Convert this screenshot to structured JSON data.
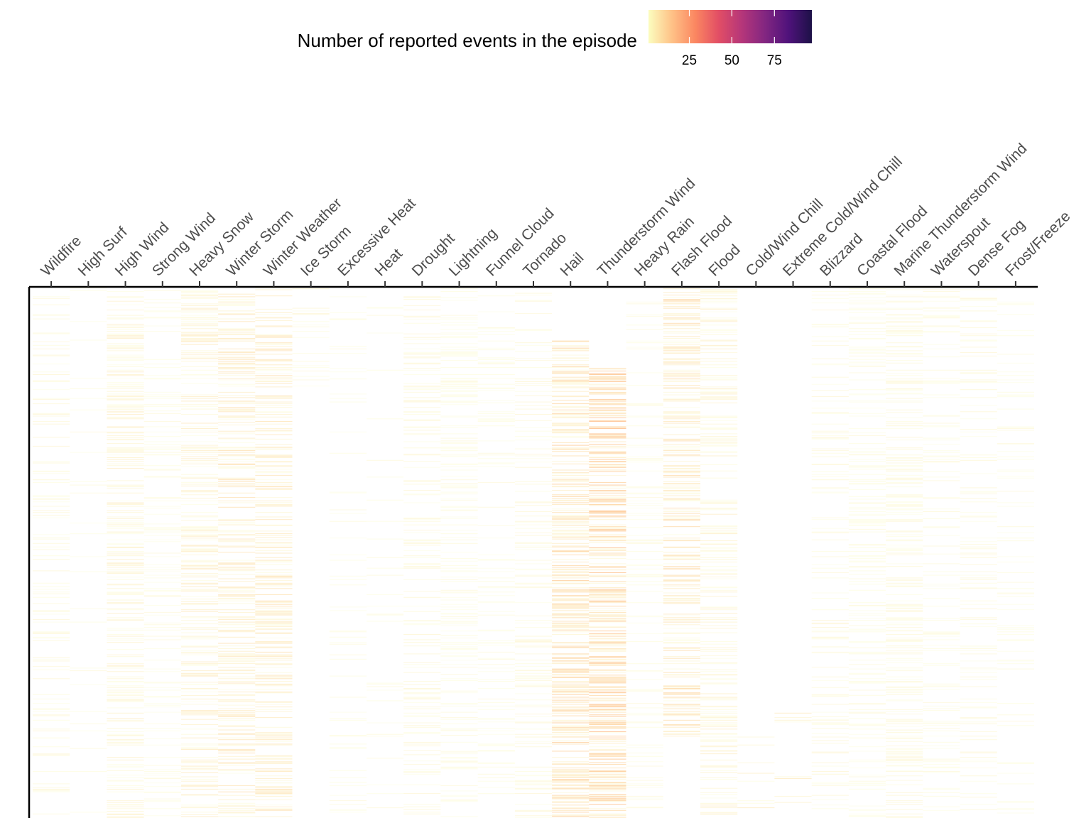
{
  "chart_data": {
    "type": "heatmap",
    "title": "",
    "xlabel": "",
    "ylabel": "",
    "x_axis_position": "top",
    "y_axis_labels_shown": false,
    "grid": false,
    "categories": [
      "Wildfire",
      "High Surf",
      "High Wind",
      "Strong Wind",
      "Heavy Snow",
      "Winter Storm",
      "Winter Weather",
      "Ice Storm",
      "Excessive Heat",
      "Heat",
      "Drought",
      "Lightning",
      "Funnel Cloud",
      "Tornado",
      "Hail",
      "Thunderstorm Wind",
      "Heavy Rain",
      "Flash Flood",
      "Flood",
      "Cold/Wind Chill",
      "Extreme Cold/Wind Chill",
      "Blizzard",
      "Coastal Flood",
      "Marine Thunderstorm Wind",
      "Waterspout",
      "Dense Fog",
      "Frost/Freeze"
    ],
    "row_count_estimate": 1200,
    "legend": {
      "title": "Number of reported events in the episode",
      "position": "top",
      "ticks": [
        25,
        50,
        75
      ],
      "range": [
        1,
        97
      ],
      "palette": "magma (reversed)",
      "colors": [
        "#fcfdbf",
        "#fec287",
        "#fb8761",
        "#e24e65",
        "#b5367a",
        "#822681",
        "#4f127b",
        "#1d1147",
        "#000004"
      ]
    },
    "column_density": [
      0.3,
      0.12,
      0.6,
      0.35,
      0.6,
      0.65,
      0.65,
      0.2,
      0.15,
      0.12,
      0.45,
      0.5,
      0.25,
      0.4,
      0.85,
      0.9,
      0.3,
      0.75,
      0.5,
      0.15,
      0.15,
      0.3,
      0.4,
      0.6,
      0.35,
      0.3,
      0.2
    ],
    "column_intensity_profile": [
      {
        "category": "Wildfire",
        "band_start": 0.0,
        "band_end": 1.0,
        "mean_count": 3
      },
      {
        "category": "High Surf",
        "band_start": 0.0,
        "band_end": 1.0,
        "mean_count": 2
      },
      {
        "category": "High Wind",
        "band_start": 0.0,
        "band_end": 1.0,
        "mean_count": 4
      },
      {
        "category": "Strong Wind",
        "band_start": 0.0,
        "band_end": 1.0,
        "mean_count": 2
      },
      {
        "category": "Heavy Snow",
        "band_start": 0.0,
        "band_end": 1.0,
        "mean_count": 5
      },
      {
        "category": "Winter Storm",
        "band_start": 0.0,
        "band_end": 1.0,
        "mean_count": 6
      },
      {
        "category": "Winter Weather",
        "band_start": 0.0,
        "band_end": 1.0,
        "mean_count": 6
      },
      {
        "category": "Ice Storm",
        "band_start": 0.0,
        "band_end": 0.2,
        "mean_count": 3
      },
      {
        "category": "Excessive Heat",
        "band_start": 0.0,
        "band_end": 1.0,
        "mean_count": 2
      },
      {
        "category": "Heat",
        "band_start": 0.0,
        "band_end": 1.0,
        "mean_count": 2
      },
      {
        "category": "Drought",
        "band_start": 0.0,
        "band_end": 1.0,
        "mean_count": 3
      },
      {
        "category": "Lightning",
        "band_start": 0.0,
        "band_end": 1.0,
        "mean_count": 2
      },
      {
        "category": "Funnel Cloud",
        "band_start": 0.0,
        "band_end": 1.0,
        "mean_count": 2
      },
      {
        "category": "Tornado",
        "band_start": 0.0,
        "band_end": 1.0,
        "mean_count": 3
      },
      {
        "category": "Hail",
        "band_start": 0.1,
        "band_end": 1.0,
        "mean_count": 8
      },
      {
        "category": "Thunderstorm Wind",
        "band_start": 0.15,
        "band_end": 1.0,
        "mean_count": 10
      },
      {
        "category": "Heavy Rain",
        "band_start": 0.0,
        "band_end": 1.0,
        "mean_count": 2
      },
      {
        "category": "Flash Flood",
        "band_start": 0.0,
        "band_end": 0.85,
        "mean_count": 7
      },
      {
        "category": "Flood",
        "band_start": 0.0,
        "band_end": 1.0,
        "mean_count": 4
      },
      {
        "category": "Cold/Wind Chill",
        "band_start": 0.8,
        "band_end": 1.0,
        "mean_count": 5
      },
      {
        "category": "Extreme Cold/Wind Chill",
        "band_start": 0.8,
        "band_end": 1.0,
        "mean_count": 5
      },
      {
        "category": "Blizzard",
        "band_start": 0.0,
        "band_end": 1.0,
        "mean_count": 3
      },
      {
        "category": "Coastal Flood",
        "band_start": 0.0,
        "band_end": 1.0,
        "mean_count": 2
      },
      {
        "category": "Marine Thunderstorm Wind",
        "band_start": 0.0,
        "band_end": 1.0,
        "mean_count": 3
      },
      {
        "category": "Waterspout",
        "band_start": 0.0,
        "band_end": 1.0,
        "mean_count": 2
      },
      {
        "category": "Dense Fog",
        "band_start": 0.0,
        "band_end": 1.0,
        "mean_count": 3
      },
      {
        "category": "Frost/Freeze",
        "band_start": 0.0,
        "band_end": 1.0,
        "mean_count": 2
      }
    ]
  }
}
